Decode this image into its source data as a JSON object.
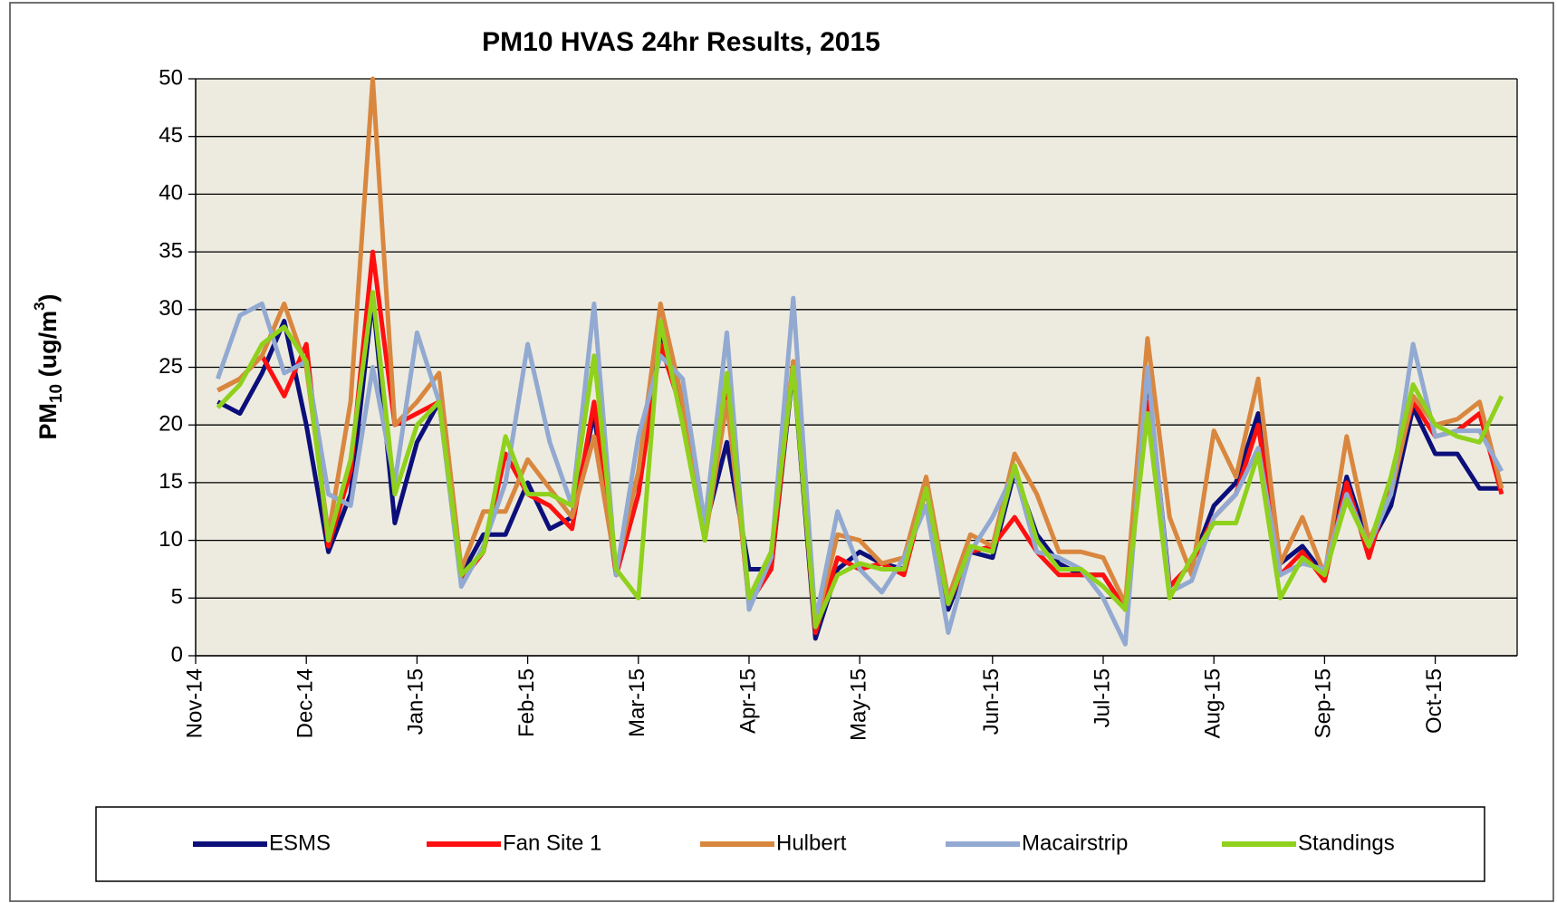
{
  "chart_data": {
    "type": "line",
    "title": "PM10 HVAS 24hr Results, 2015",
    "y_label": [
      "PM",
      "10",
      " (ug/m",
      "3",
      ")"
    ],
    "categories": [
      "Nov-14",
      null,
      null,
      null,
      null,
      "Dec-14",
      null,
      null,
      null,
      null,
      "Jan-15",
      null,
      null,
      null,
      null,
      "Feb-15",
      null,
      null,
      null,
      null,
      "Mar-15",
      null,
      null,
      null,
      null,
      "Apr-15",
      null,
      null,
      null,
      null,
      "May-15",
      null,
      null,
      null,
      null,
      null,
      "Jun-15",
      null,
      null,
      null,
      null,
      "Jul-15",
      null,
      null,
      null,
      null,
      "Aug-15",
      null,
      null,
      null,
      null,
      "Sep-15",
      null,
      null,
      null,
      null,
      "Oct-15",
      null,
      null,
      null
    ],
    "ylim": [
      0,
      50
    ],
    "yticks": [
      0,
      5,
      10,
      15,
      20,
      25,
      30,
      35,
      40,
      45,
      50
    ],
    "grid": true,
    "legend": "bottom",
    "series": [
      {
        "name": "ESMS",
        "color": "#0c0f7a",
        "values": [
          null,
          22,
          21,
          24.5,
          29,
          20,
          9,
          14,
          31,
          11.5,
          18.5,
          22,
          7,
          10.5,
          10.5,
          15,
          11,
          12,
          21,
          7,
          14,
          28,
          21,
          11,
          18.5,
          7.5,
          7.5,
          25,
          1.5,
          7.5,
          9,
          8,
          7.5,
          14.5,
          4,
          9,
          8.5,
          16,
          10.5,
          8,
          7,
          7,
          4,
          24.5,
          6,
          8,
          13,
          15,
          21,
          8,
          9.5,
          7,
          15.5,
          9.5,
          13,
          21.5,
          17.5,
          17.5,
          14.5,
          14.5
        ]
      },
      {
        "name": "Fan Site 1",
        "color": "#ff1010",
        "values": [
          null,
          23,
          24,
          26,
          22.5,
          27,
          9.5,
          16,
          35,
          20,
          21,
          22,
          6.5,
          9,
          17.5,
          14,
          13,
          11,
          22,
          7,
          14,
          27,
          21,
          11,
          23.5,
          4.5,
          7.5,
          25.5,
          2,
          8.5,
          7.5,
          8,
          7,
          14.5,
          4.5,
          9,
          9.5,
          12,
          9,
          7,
          7,
          7,
          4,
          22,
          6,
          8,
          12,
          14,
          20,
          7,
          9,
          6.5,
          15,
          8.5,
          15,
          22,
          19,
          19.5,
          21,
          14
        ]
      },
      {
        "name": "Hulbert",
        "color": "#d9873f",
        "values": [
          null,
          23,
          24,
          26,
          30.5,
          25,
          10.5,
          22,
          50,
          20,
          22,
          24.5,
          7.5,
          12.5,
          12.5,
          17,
          14.5,
          12,
          19,
          7.5,
          16,
          30.5,
          22,
          10,
          22,
          5,
          9,
          25.5,
          2.5,
          10.5,
          10,
          8,
          8.5,
          15.5,
          5,
          10.5,
          9.5,
          17.5,
          14,
          9,
          9,
          8.5,
          4.5,
          27.5,
          12,
          7,
          19.5,
          15.5,
          24,
          8,
          12,
          7,
          19,
          10,
          14,
          22.5,
          20,
          20.5,
          22,
          14.5
        ]
      },
      {
        "name": "Macairstrip",
        "color": "#92a9d1",
        "values": [
          null,
          24,
          29.5,
          30.5,
          24.5,
          25.5,
          14,
          13,
          25,
          15,
          28,
          22,
          6,
          9.5,
          15,
          27,
          18.5,
          13,
          30.5,
          7,
          19,
          26,
          24,
          11.5,
          28,
          4,
          8.5,
          31,
          3,
          12.5,
          7.5,
          5.5,
          8.5,
          13,
          2,
          9,
          12,
          16,
          9,
          8.5,
          7.5,
          5,
          1,
          25,
          5.5,
          6.5,
          12,
          14,
          18,
          7,
          8,
          7.5,
          14,
          9.5,
          14,
          27,
          19,
          19.5,
          19.5,
          16
        ]
      },
      {
        "name": "Standings",
        "color": "#8fd11c",
        "values": [
          null,
          21.5,
          23.5,
          27,
          28.5,
          25.5,
          10,
          17,
          31.5,
          14,
          20,
          22,
          7,
          9,
          19,
          14,
          14,
          13,
          26,
          7.5,
          5,
          29,
          20,
          10,
          24.5,
          5,
          9,
          25,
          2.5,
          7,
          8,
          7.5,
          7.5,
          14.5,
          4.5,
          9.5,
          9,
          16.5,
          10,
          7.5,
          7.5,
          6,
          4,
          21,
          5,
          8.5,
          11.5,
          11.5,
          17.5,
          5,
          8.5,
          7,
          13.5,
          9.5,
          15.5,
          23.5,
          20,
          19,
          18.5,
          22.5
        ]
      }
    ]
  }
}
